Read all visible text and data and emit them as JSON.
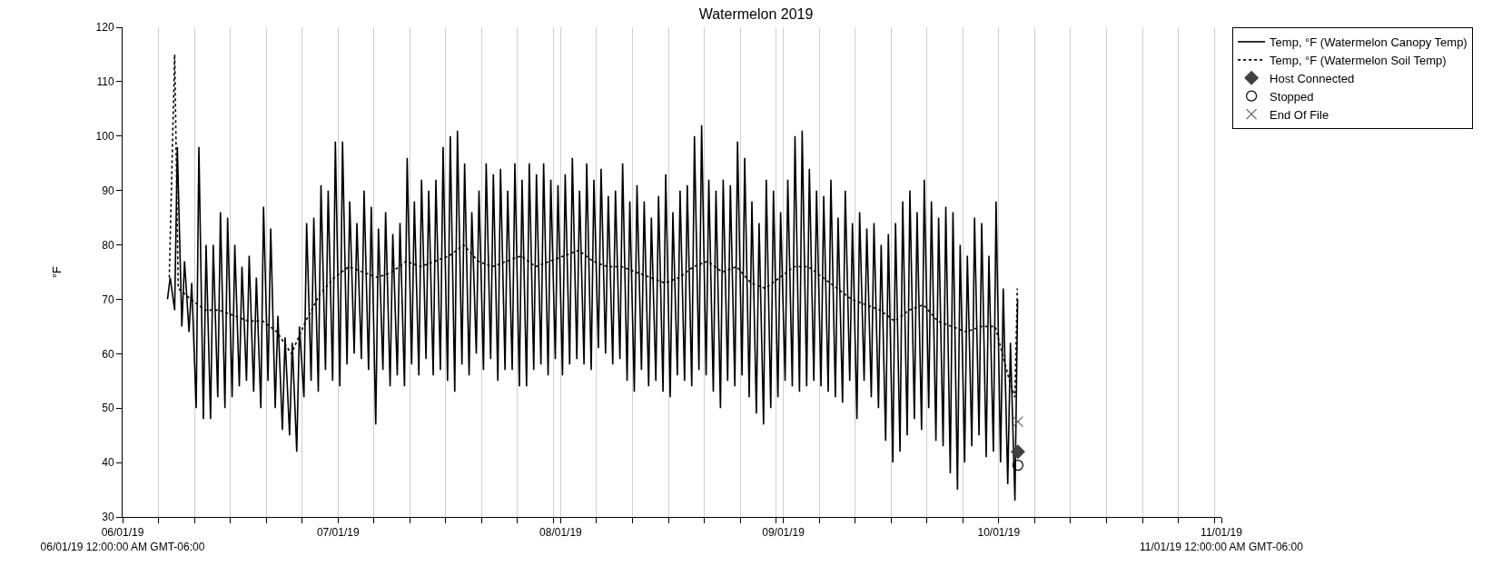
{
  "chart_data": {
    "type": "line",
    "title": "Watermelon 2019",
    "ylabel": "°F",
    "xlim": [
      "2019-06-01",
      "2019-11-01"
    ],
    "xticks": [
      {
        "value": "2019-06-01",
        "label": "06/01/19\n06/01/19 12:00:00 AM GMT-06:00"
      },
      {
        "value": "2019-06-06",
        "label": null
      },
      {
        "value": "2019-06-11",
        "label": null
      },
      {
        "value": "2019-06-16",
        "label": null
      },
      {
        "value": "2019-06-21",
        "label": null
      },
      {
        "value": "2019-06-26",
        "label": null
      },
      {
        "value": "2019-07-01",
        "label": "07/01/19"
      },
      {
        "value": "2019-07-06",
        "label": null
      },
      {
        "value": "2019-07-11",
        "label": null
      },
      {
        "value": "2019-07-16",
        "label": null
      },
      {
        "value": "2019-07-21",
        "label": null
      },
      {
        "value": "2019-07-26",
        "label": null
      },
      {
        "value": "2019-07-31",
        "label": null
      },
      {
        "value": "2019-08-01",
        "label": "08/01/19"
      },
      {
        "value": "2019-08-06",
        "label": null
      },
      {
        "value": "2019-08-11",
        "label": null
      },
      {
        "value": "2019-08-16",
        "label": null
      },
      {
        "value": "2019-08-21",
        "label": null
      },
      {
        "value": "2019-08-26",
        "label": null
      },
      {
        "value": "2019-08-31",
        "label": null
      },
      {
        "value": "2019-09-01",
        "label": "09/01/19"
      },
      {
        "value": "2019-09-06",
        "label": null
      },
      {
        "value": "2019-09-11",
        "label": null
      },
      {
        "value": "2019-09-16",
        "label": null
      },
      {
        "value": "2019-09-21",
        "label": null
      },
      {
        "value": "2019-09-26",
        "label": null
      },
      {
        "value": "2019-10-01",
        "label": "10/01/19"
      },
      {
        "value": "2019-10-06",
        "label": null
      },
      {
        "value": "2019-10-11",
        "label": null
      },
      {
        "value": "2019-10-16",
        "label": null
      },
      {
        "value": "2019-10-21",
        "label": null
      },
      {
        "value": "2019-10-26",
        "label": null
      },
      {
        "value": "2019-10-31",
        "label": null
      },
      {
        "value": "2019-11-01",
        "label": "11/01/19\n11/01/19 12:00:00 AM GMT-06:00"
      }
    ],
    "ylim": [
      30,
      120
    ],
    "yticks": [
      30,
      40,
      50,
      60,
      70,
      80,
      90,
      100,
      110,
      120
    ],
    "grid": "x",
    "legend": "top right",
    "series": [
      {
        "name": "Temp, °F (Watermelon Canopy Temp)",
        "line_style": "solid",
        "color": "#000000",
        "x": [
          "2019-06-07T06:00",
          "2019-06-07T15:00",
          "2019-06-08T06:00",
          "2019-06-08T15:00",
          "2019-06-09T06:00",
          "2019-06-09T15:00",
          "2019-06-10T06:00",
          "2019-06-10T15:00",
          "2019-06-11T06:00",
          "2019-06-11T15:00",
          "2019-06-12T06:00",
          "2019-06-12T15:00",
          "2019-06-13T06:00",
          "2019-06-13T15:00",
          "2019-06-14T06:00",
          "2019-06-14T15:00",
          "2019-06-15T06:00",
          "2019-06-15T15:00",
          "2019-06-16T06:00",
          "2019-06-16T15:00",
          "2019-06-17T06:00",
          "2019-06-17T15:00",
          "2019-06-18T06:00",
          "2019-06-18T15:00",
          "2019-06-19T06:00",
          "2019-06-19T15:00",
          "2019-06-20T06:00",
          "2019-06-20T15:00",
          "2019-06-21T06:00",
          "2019-06-21T15:00",
          "2019-06-22T06:00",
          "2019-06-22T15:00",
          "2019-06-23T06:00",
          "2019-06-23T15:00",
          "2019-06-24T06:00",
          "2019-06-24T15:00",
          "2019-06-25T06:00",
          "2019-06-25T15:00",
          "2019-06-26T06:00",
          "2019-06-26T15:00",
          "2019-06-27T06:00",
          "2019-06-27T15:00",
          "2019-06-28T06:00",
          "2019-06-28T15:00",
          "2019-06-29T06:00",
          "2019-06-29T15:00",
          "2019-06-30T06:00",
          "2019-06-30T15:00",
          "2019-07-01T06:00",
          "2019-07-01T15:00",
          "2019-07-02T06:00",
          "2019-07-02T15:00",
          "2019-07-03T06:00",
          "2019-07-03T15:00",
          "2019-07-04T06:00",
          "2019-07-04T15:00",
          "2019-07-05T06:00",
          "2019-07-05T15:00",
          "2019-07-06T06:00",
          "2019-07-06T15:00",
          "2019-07-07T06:00",
          "2019-07-07T15:00",
          "2019-07-08T06:00",
          "2019-07-08T15:00",
          "2019-07-09T06:00",
          "2019-07-09T15:00",
          "2019-07-10T06:00",
          "2019-07-10T15:00",
          "2019-07-11T06:00",
          "2019-07-11T15:00",
          "2019-07-12T06:00",
          "2019-07-12T15:00",
          "2019-07-13T06:00",
          "2019-07-13T15:00",
          "2019-07-14T06:00",
          "2019-07-14T15:00",
          "2019-07-15T06:00",
          "2019-07-15T15:00",
          "2019-07-16T06:00",
          "2019-07-16T15:00",
          "2019-07-17T06:00",
          "2019-07-17T15:00",
          "2019-07-18T06:00",
          "2019-07-18T15:00",
          "2019-07-19T06:00",
          "2019-07-19T15:00",
          "2019-07-20T06:00",
          "2019-07-20T15:00",
          "2019-07-21T06:00",
          "2019-07-21T15:00",
          "2019-07-22T06:00",
          "2019-07-22T15:00",
          "2019-07-23T06:00",
          "2019-07-23T15:00",
          "2019-07-24T06:00",
          "2019-07-24T15:00",
          "2019-07-25T06:00",
          "2019-07-25T15:00",
          "2019-07-26T06:00",
          "2019-07-26T15:00",
          "2019-07-27T06:00",
          "2019-07-27T15:00",
          "2019-07-28T06:00",
          "2019-07-28T15:00",
          "2019-07-29T06:00",
          "2019-07-29T15:00",
          "2019-07-30T06:00",
          "2019-07-30T15:00",
          "2019-07-31T06:00",
          "2019-07-31T15:00",
          "2019-08-01T06:00",
          "2019-08-01T15:00",
          "2019-08-02T06:00",
          "2019-08-02T15:00",
          "2019-08-03T06:00",
          "2019-08-03T15:00",
          "2019-08-04T06:00",
          "2019-08-04T15:00",
          "2019-08-05T06:00",
          "2019-08-05T15:00",
          "2019-08-06T06:00",
          "2019-08-06T15:00",
          "2019-08-07T06:00",
          "2019-08-07T15:00",
          "2019-08-08T06:00",
          "2019-08-08T15:00",
          "2019-08-09T06:00",
          "2019-08-09T15:00",
          "2019-08-10T06:00",
          "2019-08-10T15:00",
          "2019-08-11T06:00",
          "2019-08-11T15:00",
          "2019-08-12T06:00",
          "2019-08-12T15:00",
          "2019-08-13T06:00",
          "2019-08-13T15:00",
          "2019-08-14T06:00",
          "2019-08-14T15:00",
          "2019-08-15T06:00",
          "2019-08-15T15:00",
          "2019-08-16T06:00",
          "2019-08-16T15:00",
          "2019-08-17T06:00",
          "2019-08-17T15:00",
          "2019-08-18T06:00",
          "2019-08-18T15:00",
          "2019-08-19T06:00",
          "2019-08-19T15:00",
          "2019-08-20T06:00",
          "2019-08-20T15:00",
          "2019-08-21T06:00",
          "2019-08-21T15:00",
          "2019-08-22T06:00",
          "2019-08-22T15:00",
          "2019-08-23T06:00",
          "2019-08-23T15:00",
          "2019-08-24T06:00",
          "2019-08-24T15:00",
          "2019-08-25T06:00",
          "2019-08-25T15:00",
          "2019-08-26T06:00",
          "2019-08-26T15:00",
          "2019-08-27T06:00",
          "2019-08-27T15:00",
          "2019-08-28T06:00",
          "2019-08-28T15:00",
          "2019-08-29T06:00",
          "2019-08-29T15:00",
          "2019-08-30T06:00",
          "2019-08-30T15:00",
          "2019-08-31T06:00",
          "2019-08-31T15:00",
          "2019-09-01T06:00",
          "2019-09-01T15:00",
          "2019-09-02T06:00",
          "2019-09-02T15:00",
          "2019-09-03T06:00",
          "2019-09-03T15:00",
          "2019-09-04T06:00",
          "2019-09-04T15:00",
          "2019-09-05T06:00",
          "2019-09-05T15:00",
          "2019-09-06T06:00",
          "2019-09-06T15:00",
          "2019-09-07T06:00",
          "2019-09-07T15:00",
          "2019-09-08T06:00",
          "2019-09-08T15:00",
          "2019-09-09T06:00",
          "2019-09-09T15:00",
          "2019-09-10T06:00",
          "2019-09-10T15:00",
          "2019-09-11T06:00",
          "2019-09-11T15:00",
          "2019-09-12T06:00",
          "2019-09-12T15:00",
          "2019-09-13T06:00",
          "2019-09-13T15:00",
          "2019-09-14T06:00",
          "2019-09-14T15:00",
          "2019-09-15T06:00",
          "2019-09-15T15:00",
          "2019-09-16T06:00",
          "2019-09-16T15:00",
          "2019-09-17T06:00",
          "2019-09-17T15:00",
          "2019-09-18T06:00",
          "2019-09-18T15:00",
          "2019-09-19T06:00",
          "2019-09-19T15:00",
          "2019-09-20T06:00",
          "2019-09-20T15:00",
          "2019-09-21T06:00",
          "2019-09-21T15:00",
          "2019-09-22T06:00",
          "2019-09-22T15:00",
          "2019-09-23T06:00",
          "2019-09-23T15:00",
          "2019-09-24T06:00",
          "2019-09-24T15:00",
          "2019-09-25T06:00",
          "2019-09-25T15:00",
          "2019-09-26T06:00",
          "2019-09-26T15:00",
          "2019-09-27T06:00",
          "2019-09-27T15:00",
          "2019-09-28T06:00",
          "2019-09-28T15:00",
          "2019-09-29T06:00",
          "2019-09-29T15:00",
          "2019-09-30T06:00",
          "2019-09-30T15:00",
          "2019-10-01T06:00",
          "2019-10-01T15:00",
          "2019-10-02T06:00",
          "2019-10-02T15:00",
          "2019-10-03T06:00",
          "2019-10-03T15:00"
        ],
        "values": [
          70,
          74,
          68,
          98,
          65,
          77,
          64,
          73,
          50,
          98,
          48,
          80,
          48,
          80,
          52,
          86,
          50,
          85,
          52,
          80,
          54,
          76,
          55,
          78,
          53,
          74,
          50,
          87,
          55,
          83,
          50,
          67,
          46,
          63,
          45,
          62,
          42,
          65,
          52,
          84,
          55,
          85,
          53,
          91,
          57,
          90,
          55,
          99,
          54,
          99,
          58,
          88,
          60,
          84,
          59,
          90,
          57,
          87,
          47,
          83,
          57,
          86,
          54,
          82,
          56,
          84,
          54,
          96,
          58,
          88,
          56,
          92,
          59,
          90,
          56,
          92,
          57,
          98,
          55,
          100,
          53,
          101,
          58,
          95,
          56,
          86,
          60,
          90,
          57,
          95,
          59,
          93,
          55,
          94,
          57,
          90,
          57,
          95,
          54,
          92,
          54,
          95,
          57,
          93,
          58,
          95,
          56,
          92,
          59,
          91,
          56,
          93,
          58,
          96,
          59,
          90,
          58,
          95,
          57,
          92,
          61,
          94,
          60,
          89,
          58,
          90,
          59,
          95,
          55,
          88,
          53,
          91,
          57,
          88,
          54,
          85,
          55,
          89,
          53,
          93,
          52,
          86,
          56,
          90,
          55,
          91,
          54,
          100,
          57,
          102,
          56,
          92,
          53,
          90,
          50,
          92,
          55,
          91,
          54,
          99,
          56,
          96,
          52,
          88,
          49,
          84,
          47,
          92,
          50,
          90,
          52,
          86,
          55,
          92,
          54,
          100,
          53,
          101,
          54,
          94,
          55,
          90,
          54,
          89,
          53,
          92,
          52,
          85,
          51,
          90,
          55,
          84,
          48,
          86,
          55,
          83,
          52,
          84,
          50,
          80,
          44,
          82,
          40,
          84,
          42,
          88,
          45,
          90,
          48,
          86,
          46,
          92,
          50,
          88,
          44,
          85,
          43,
          87,
          38,
          86,
          35,
          80,
          40,
          78,
          43,
          85,
          45,
          84,
          41,
          78,
          42,
          88,
          40,
          72,
          36,
          62,
          33,
          70
        ]
      },
      {
        "name": "Temp, °F (Watermelon Soil Temp)",
        "line_style": "dotted",
        "color": "#000000",
        "x": [
          "2019-06-07T12:00",
          "2019-06-08T06:00",
          "2019-06-08T18:00",
          "2019-06-10T12:00",
          "2019-06-12T12:00",
          "2019-06-14T12:00",
          "2019-06-16T12:00",
          "2019-06-18T12:00",
          "2019-06-20T12:00",
          "2019-06-22T12:00",
          "2019-06-24T12:00",
          "2019-06-26T12:00",
          "2019-06-28T12:00",
          "2019-06-30T12:00",
          "2019-07-02T12:00",
          "2019-07-04T12:00",
          "2019-07-06T12:00",
          "2019-07-08T12:00",
          "2019-07-10T12:00",
          "2019-07-12T12:00",
          "2019-07-14T12:00",
          "2019-07-16T12:00",
          "2019-07-18T12:00",
          "2019-07-20T12:00",
          "2019-07-22T12:00",
          "2019-07-24T12:00",
          "2019-07-26T12:00",
          "2019-07-28T12:00",
          "2019-07-30T12:00",
          "2019-08-01T12:00",
          "2019-08-03T12:00",
          "2019-08-05T12:00",
          "2019-08-07T12:00",
          "2019-08-09T12:00",
          "2019-08-11T12:00",
          "2019-08-13T12:00",
          "2019-08-15T12:00",
          "2019-08-17T12:00",
          "2019-08-19T12:00",
          "2019-08-21T12:00",
          "2019-08-23T12:00",
          "2019-08-25T12:00",
          "2019-08-27T12:00",
          "2019-08-29T12:00",
          "2019-08-31T12:00",
          "2019-09-02T12:00",
          "2019-09-04T12:00",
          "2019-09-06T12:00",
          "2019-09-08T12:00",
          "2019-09-10T12:00",
          "2019-09-12T12:00",
          "2019-09-14T12:00",
          "2019-09-16T12:00",
          "2019-09-18T12:00",
          "2019-09-20T12:00",
          "2019-09-22T12:00",
          "2019-09-24T12:00",
          "2019-09-26T12:00",
          "2019-09-28T12:00",
          "2019-09-30T12:00",
          "2019-10-01T12:00",
          "2019-10-02T12:00",
          "2019-10-03T06:00",
          "2019-10-03T14:00"
        ],
        "values": [
          74,
          115,
          72,
          70,
          68,
          68,
          67,
          66,
          66,
          64,
          60,
          66,
          71,
          74,
          76,
          75,
          74,
          75,
          77,
          76,
          77,
          78,
          80,
          77,
          76,
          77,
          78,
          76,
          77,
          78,
          79,
          77,
          76,
          76,
          75,
          74,
          73,
          74,
          76,
          77,
          75,
          76,
          73,
          72,
          74,
          76,
          76,
          74,
          72,
          70,
          69,
          68,
          66,
          68,
          69,
          66,
          65,
          64,
          65,
          65,
          60,
          55,
          52,
          72
        ]
      },
      {
        "name": "Host Connected",
        "type": "scatter",
        "marker": "diamond",
        "color": "#404040",
        "x": [
          "2019-10-03T16:00"
        ],
        "values": [
          42
        ]
      },
      {
        "name": "Stopped",
        "type": "scatter",
        "marker": "circle",
        "color": "#000000",
        "x": [
          "2019-10-03T16:00"
        ],
        "values": [
          39.5
        ]
      },
      {
        "name": "End Of File",
        "type": "scatter",
        "marker": "cross",
        "color": "#606060",
        "x": [
          "2019-10-03T16:00"
        ],
        "values": [
          47.5
        ]
      }
    ]
  }
}
